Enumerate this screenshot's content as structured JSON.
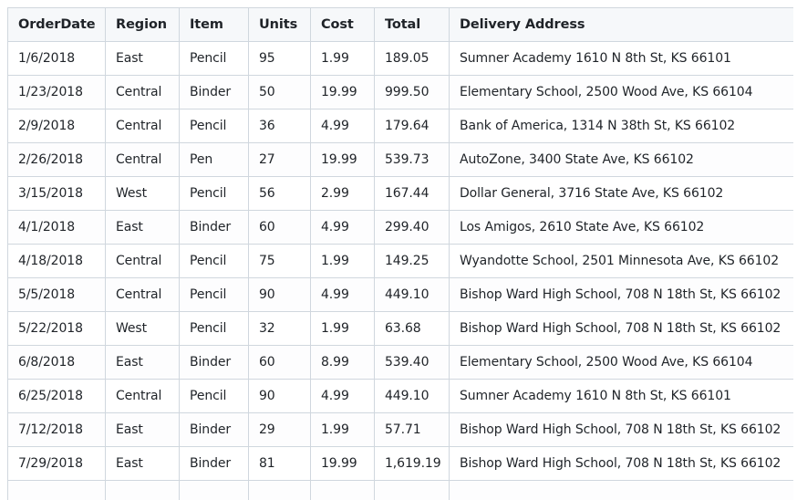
{
  "table": {
    "headers": [
      "OrderDate",
      "Region",
      "Item",
      "Units",
      "Cost",
      "Total",
      "Delivery Address"
    ],
    "rows": [
      [
        "1/6/2018",
        "East",
        "Pencil",
        "95",
        "1.99",
        "189.05",
        "Sumner Academy 1610 N 8th St, KS 66101"
      ],
      [
        "1/23/2018",
        "Central",
        "Binder",
        "50",
        "19.99",
        "999.50",
        "Elementary School, 2500 Wood Ave, KS 66104"
      ],
      [
        "2/9/2018",
        "Central",
        "Pencil",
        "36",
        "4.99",
        "179.64",
        "Bank of America, 1314 N 38th St, KS 66102"
      ],
      [
        "2/26/2018",
        "Central",
        "Pen",
        "27",
        "19.99",
        "539.73",
        "AutoZone, 3400 State Ave, KS 66102"
      ],
      [
        "3/15/2018",
        "West",
        "Pencil",
        "56",
        "2.99",
        "167.44",
        "Dollar General, 3716 State Ave, KS 66102"
      ],
      [
        "4/1/2018",
        "East",
        "Binder",
        "60",
        "4.99",
        "299.40",
        "Los Amigos, 2610 State Ave, KS 66102"
      ],
      [
        "4/18/2018",
        "Central",
        "Pencil",
        "75",
        "1.99",
        "149.25",
        " Wyandotte School, 2501 Minnesota Ave, KS 66102"
      ],
      [
        "5/5/2018",
        "Central",
        "Pencil",
        "90",
        "4.99",
        "449.10",
        "Bishop Ward High School, 708 N 18th St, KS 66102"
      ],
      [
        "5/22/2018",
        "West",
        "Pencil",
        "32",
        "1.99",
        "63.68",
        "Bishop Ward High School, 708 N 18th St, KS 66102"
      ],
      [
        "6/8/2018",
        "East",
        "Binder",
        "60",
        "8.99",
        "539.40",
        "Elementary School, 2500 Wood Ave, KS 66104"
      ],
      [
        "6/25/2018",
        "Central",
        "Pencil",
        "90",
        "4.99",
        "449.10",
        "Sumner Academy 1610 N 8th St, KS 66101"
      ],
      [
        "7/12/2018",
        "East",
        "Binder",
        "29",
        "1.99",
        "57.71",
        "Bishop Ward High School, 708 N 18th St, KS 66102"
      ],
      [
        "7/29/2018",
        "East",
        "Binder",
        "81",
        "19.99",
        "1,619.19",
        "Bishop Ward High School, 708 N 18th St, KS 66102"
      ],
      [
        "",
        "",
        "",
        "",
        "",
        "",
        ""
      ]
    ]
  }
}
